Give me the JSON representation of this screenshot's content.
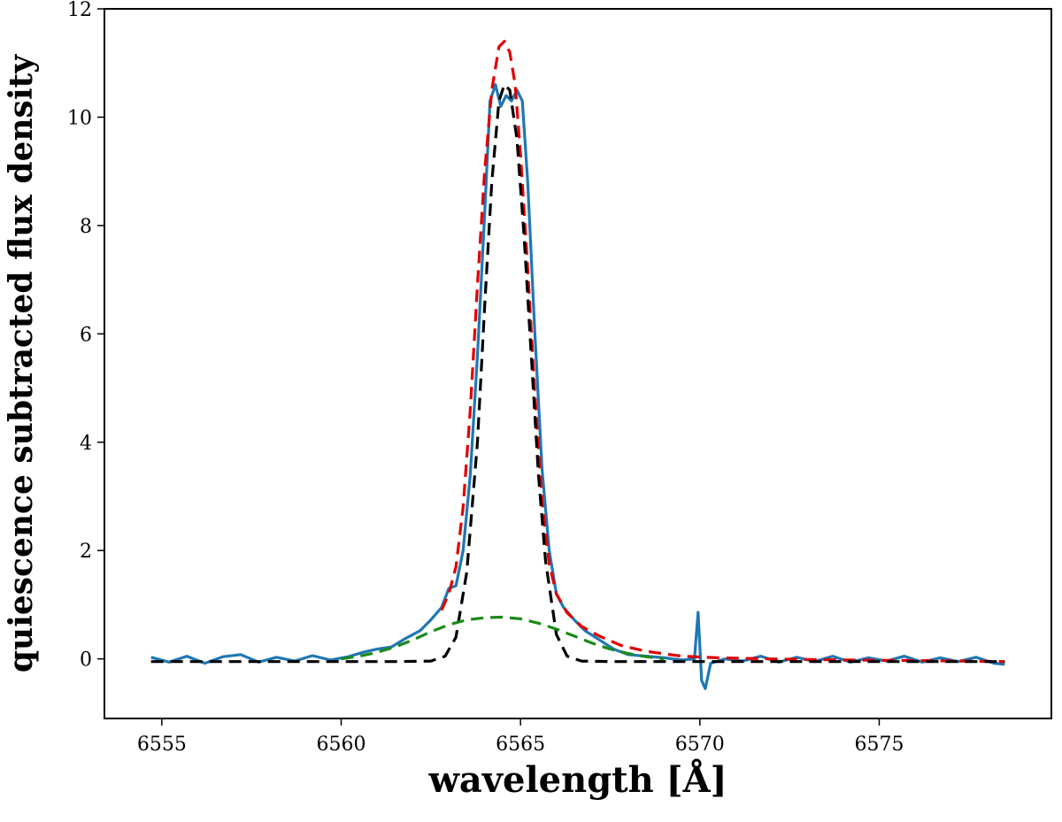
{
  "chart_data": {
    "type": "line",
    "title": "",
    "xlabel": "wavelength [Å]",
    "ylabel": "quiescence subtracted flux density",
    "xlim": [
      6553.4,
      6579.8
    ],
    "ylim": [
      -1.1,
      12.0
    ],
    "x_ticks": [
      6555,
      6560,
      6565,
      6570,
      6575
    ],
    "y_ticks": [
      0,
      2,
      4,
      6,
      8,
      10,
      12
    ],
    "grid": false,
    "legend": "none",
    "series": [
      {
        "style": "solid",
        "color": "#1f77b4",
        "x": [
          6554.7,
          6555.2,
          6555.7,
          6556.2,
          6556.7,
          6557.2,
          6557.7,
          6558.2,
          6558.7,
          6559.2,
          6559.7,
          6560.2,
          6560.6,
          6561.0,
          6561.4,
          6561.8,
          6562.2,
          6562.5,
          6562.8,
          6563.0,
          6563.2,
          6563.4,
          6563.6,
          6563.8,
          6564.0,
          6564.15,
          6564.3,
          6564.45,
          6564.6,
          6564.75,
          6564.9,
          6565.05,
          6565.2,
          6565.4,
          6565.6,
          6565.8,
          6566.0,
          6566.2,
          6566.5,
          6566.8,
          6567.2,
          6567.6,
          6568.0,
          6568.5,
          6569.0,
          6569.5,
          6569.85,
          6569.95,
          6570.05,
          6570.15,
          6570.3,
          6570.7,
          6571.2,
          6571.7,
          6572.2,
          6572.7,
          6573.2,
          6573.7,
          6574.2,
          6574.7,
          6575.2,
          6575.7,
          6576.2,
          6576.7,
          6577.2,
          6577.7,
          6578.2,
          6578.5
        ],
        "y": [
          0.03,
          -0.06,
          0.05,
          -0.08,
          0.04,
          0.08,
          -0.06,
          0.03,
          -0.04,
          0.06,
          -0.02,
          0.04,
          0.12,
          0.18,
          0.22,
          0.38,
          0.52,
          0.72,
          0.95,
          1.3,
          1.35,
          2.0,
          3.4,
          5.6,
          8.2,
          10.3,
          10.6,
          10.2,
          10.4,
          10.3,
          10.5,
          10.3,
          8.8,
          6.0,
          3.5,
          2.0,
          1.2,
          0.95,
          0.72,
          0.52,
          0.35,
          0.18,
          0.08,
          0.05,
          0.02,
          -0.02,
          0.0,
          0.86,
          -0.4,
          -0.55,
          -0.08,
          0.0,
          -0.04,
          0.05,
          -0.06,
          0.03,
          -0.05,
          0.05,
          -0.06,
          0.02,
          -0.04,
          0.05,
          -0.06,
          0.02,
          -0.05,
          0.03,
          -0.08,
          -0.1
        ]
      },
      {
        "style": "dashed",
        "color": "#e00000",
        "x": [
          6562.8,
          6563.0,
          6563.2,
          6563.4,
          6563.6,
          6563.8,
          6564.0,
          6564.2,
          6564.4,
          6564.55,
          6564.7,
          6564.85,
          6565.0,
          6565.2,
          6565.4,
          6565.6,
          6565.8,
          6566.0,
          6566.3,
          6566.7,
          6567.2,
          6567.8,
          6568.5,
          6569.5,
          6570.5,
          6572.0,
          6574.0,
          6576.0,
          6578.5
        ],
        "y": [
          0.9,
          1.2,
          1.7,
          2.8,
          4.6,
          6.9,
          9.0,
          10.5,
          11.3,
          11.4,
          11.2,
          10.6,
          9.3,
          7.2,
          4.9,
          2.9,
          1.75,
          1.2,
          0.85,
          0.6,
          0.42,
          0.25,
          0.14,
          0.05,
          0.02,
          0.0,
          -0.02,
          -0.03,
          -0.05
        ]
      },
      {
        "style": "dashed",
        "color": "#000000",
        "x": [
          6554.7,
          6556.0,
          6558.0,
          6560.0,
          6561.5,
          6562.5,
          6562.9,
          6563.2,
          6563.5,
          6563.8,
          6564.0,
          6564.2,
          6564.4,
          6564.55,
          6564.7,
          6564.9,
          6565.1,
          6565.3,
          6565.5,
          6565.7,
          6566.0,
          6566.3,
          6566.7,
          6567.5,
          6569.0,
          6571.0,
          6573.0,
          6575.0,
          6577.0,
          6578.5
        ],
        "y": [
          -0.05,
          -0.05,
          -0.05,
          -0.05,
          -0.05,
          -0.04,
          0.05,
          0.4,
          1.6,
          4.0,
          6.5,
          8.8,
          10.3,
          10.6,
          10.5,
          9.6,
          7.8,
          5.6,
          3.4,
          1.8,
          0.45,
          0.05,
          -0.04,
          -0.05,
          -0.05,
          -0.05,
          -0.05,
          -0.05,
          -0.05,
          -0.05
        ]
      },
      {
        "style": "dashed",
        "color": "#1a8a1a",
        "x": [
          6560.0,
          6560.5,
          6561.0,
          6561.5,
          6562.0,
          6562.5,
          6563.0,
          6563.5,
          6564.0,
          6564.5,
          6565.0,
          6565.5,
          6566.0,
          6566.5,
          6567.0,
          6567.5,
          6568.0,
          6568.5,
          6569.0
        ],
        "y": [
          0.0,
          0.05,
          0.12,
          0.22,
          0.35,
          0.5,
          0.63,
          0.72,
          0.76,
          0.77,
          0.74,
          0.66,
          0.55,
          0.42,
          0.29,
          0.18,
          0.1,
          0.04,
          0.0
        ]
      }
    ]
  }
}
